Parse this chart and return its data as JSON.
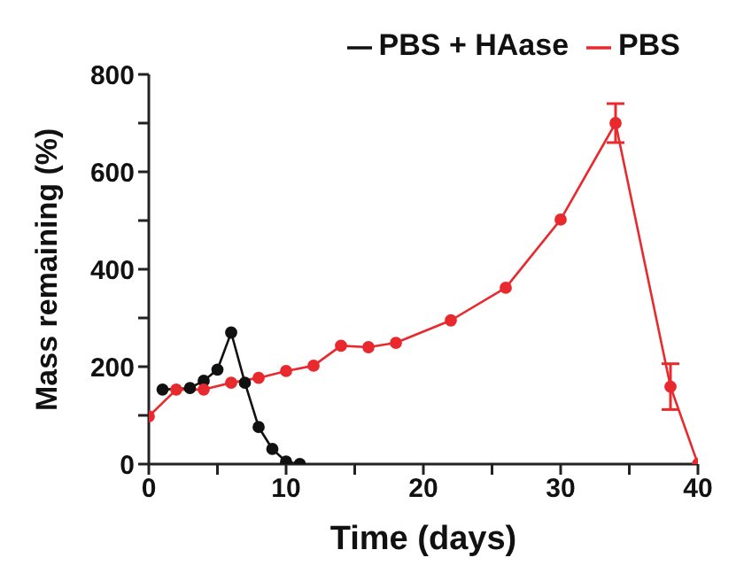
{
  "chart_data": {
    "type": "line",
    "xlabel": "Time (days)",
    "ylabel": "Mass remaining (%)",
    "series": [
      {
        "name": "PBS + HAase",
        "color": "#111111",
        "x": [
          1,
          2,
          3,
          4,
          5,
          6,
          7,
          8,
          9,
          10,
          11
        ],
        "values": [
          153,
          null,
          156,
          171,
          194,
          270,
          167,
          76,
          31,
          5,
          0
        ]
      },
      {
        "name": "PBS",
        "color": "#e8292e",
        "x": [
          0,
          2,
          4,
          6,
          8,
          10,
          12,
          14,
          16,
          18,
          22,
          26,
          30,
          34,
          38,
          40
        ],
        "values": [
          98,
          153,
          153,
          167,
          177,
          191,
          202,
          243,
          240,
          249,
          295,
          362,
          502,
          700,
          159,
          0
        ],
        "errors": [
          null,
          null,
          null,
          null,
          null,
          null,
          null,
          null,
          null,
          null,
          null,
          null,
          null,
          40,
          47,
          null
        ]
      }
    ],
    "xlim": [
      0,
      40
    ],
    "xticks": [
      0,
      {
        "value": 5,
        "label": null
      },
      10,
      {
        "value": 15,
        "label": null
      },
      20,
      {
        "value": 25,
        "label": null
      },
      30,
      {
        "value": 35,
        "label": null
      },
      40
    ],
    "ylim": [
      0,
      800
    ],
    "yticks": [
      0,
      {
        "value": 100,
        "label": null
      },
      200,
      {
        "value": 300,
        "label": null
      },
      400,
      {
        "value": 500,
        "label": null
      },
      600,
      {
        "value": 700,
        "label": null
      },
      800
    ],
    "grid": false,
    "legend": "top right",
    "marker": "circle",
    "line_style": "solid"
  }
}
